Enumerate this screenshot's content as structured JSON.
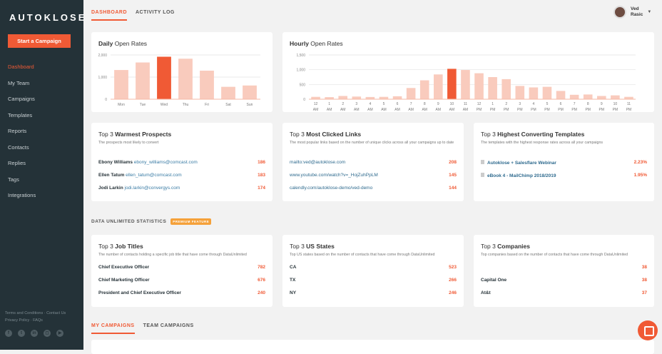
{
  "sidebar": {
    "logo": "AUTOKLOSE",
    "start_button": "Start a Campaign",
    "items": [
      "Dashboard",
      "My Team",
      "Campaigns",
      "Templates",
      "Reports",
      "Contacts",
      "Replies",
      "Tags",
      "Integrations"
    ],
    "footer_line1": "Terms and Conditions · Contact Us",
    "footer_line2": "Privacy Policy · FAQs"
  },
  "tabs": [
    "DASHBOARD",
    "ACTIVITY LOG"
  ],
  "user": {
    "first": "Ved",
    "last": "Rasic"
  },
  "daily": {
    "title_bold": "Daily",
    "title_rest": " Open Rates"
  },
  "hourly": {
    "title_bold": "Hourly",
    "title_rest": " Open Rates"
  },
  "chart_data": [
    {
      "type": "bar",
      "title": "Daily Open Rates",
      "categories": [
        "Mon",
        "Tue",
        "Wed",
        "Thu",
        "Fri",
        "Sat",
        "Sun"
      ],
      "values": [
        1320,
        1660,
        1920,
        1830,
        1290,
        560,
        620
      ],
      "highlight": "Wed",
      "yticks": [
        0,
        1000,
        2000
      ],
      "ytick_labels": [
        "0",
        "1,000",
        "2,000"
      ],
      "ylim": [
        0,
        2000
      ]
    },
    {
      "type": "bar",
      "title": "Hourly Open Rates",
      "categories": [
        "12 AM",
        "1 AM",
        "2 AM",
        "3 AM",
        "4 AM",
        "5 AM",
        "6 AM",
        "7 AM",
        "8 AM",
        "9 AM",
        "10 AM",
        "11 AM",
        "12 PM",
        "1 PM",
        "2 PM",
        "3 PM",
        "4 PM",
        "5 PM",
        "6 PM",
        "7 PM",
        "8 PM",
        "9 PM",
        "10 PM",
        "11 PM"
      ],
      "values": [
        80,
        70,
        110,
        90,
        75,
        80,
        100,
        380,
        640,
        840,
        1030,
        990,
        880,
        750,
        680,
        450,
        400,
        420,
        280,
        150,
        160,
        110,
        130,
        80
      ],
      "highlight": "10 AM",
      "yticks": [
        0,
        500,
        1000,
        1500
      ],
      "ytick_labels": [
        "0",
        "500",
        "1,000",
        "1,500"
      ],
      "ylim": [
        0,
        1500
      ]
    }
  ],
  "colors": {
    "accent": "#f05a35",
    "bar": "#f9cbbd"
  },
  "prospects": {
    "pre": "Top 3 ",
    "bold": "Warmest Prospects",
    "sub": "The prospects most likely to convert",
    "rows": [
      {
        "name": "Ebony Williams",
        "email": "ebony_williams@comcast.com",
        "value": "186"
      },
      {
        "name": "Ellen Tatum",
        "email": "ellen_tatum@comcast.com",
        "value": "183"
      },
      {
        "name": "Jodi Larkin",
        "email": "jodi.larkin@convergys.com",
        "value": "174"
      }
    ]
  },
  "links": {
    "pre": "Top 3 ",
    "bold": "Most Clicked Links",
    "sub": "The most popular links based on the number of unique clicks across all your campaigns up to date",
    "rows": [
      {
        "url": "mailto:ved@autoklose.com",
        "value": "208"
      },
      {
        "url": "www.youtube.com/watch?v=_HojZuhPpLM",
        "value": "145"
      },
      {
        "url": "calendly.com/autoklose-demo/ved-demo",
        "value": "144"
      }
    ]
  },
  "templates": {
    "pre": "Top 3 ",
    "bold": "Highest Converting Templates",
    "sub": "The templates with the highest response rates across all your campaigns",
    "rows": [
      {
        "name": "Autoklose + Salesflare Webinar",
        "value": "2.23%"
      },
      {
        "name": "eBook 4 - MailChimp 2018/2019",
        "value": "1.95%"
      }
    ]
  },
  "section": {
    "label": "DATA UNLIMITED STATISTICS",
    "badge": "PREMIUM FEATURE"
  },
  "jobs": {
    "pre": "Top 3 ",
    "bold": "Job Titles",
    "sub": "The number of contacts holding a specific job title that have come through DataUnlimited",
    "rows": [
      {
        "name": "Chief Executive Officer",
        "value": "782"
      },
      {
        "name": "Chief Marketing Officer",
        "value": "676"
      },
      {
        "name": "President and Chief Executive Officer",
        "value": "240"
      }
    ]
  },
  "states": {
    "pre": "Top 3 ",
    "bold": "US States",
    "sub": "Top US states based on the number of contacts that have come through DataUnlimited",
    "rows": [
      {
        "name": "CA",
        "value": "523"
      },
      {
        "name": "TX",
        "value": "266"
      },
      {
        "name": "NY",
        "value": "246"
      }
    ]
  },
  "companies": {
    "pre": "Top 3 ",
    "bold": "Companies",
    "sub": "Top companies based on the number of contacts that have come through DataUnlimited",
    "rows": [
      {
        "name": "",
        "value": "38"
      },
      {
        "name": "Capital One",
        "value": "38"
      },
      {
        "name": "At&t",
        "value": "37"
      }
    ]
  },
  "bottom_tabs": [
    "MY CAMPAIGNS",
    "TEAM CAMPAIGNS"
  ]
}
